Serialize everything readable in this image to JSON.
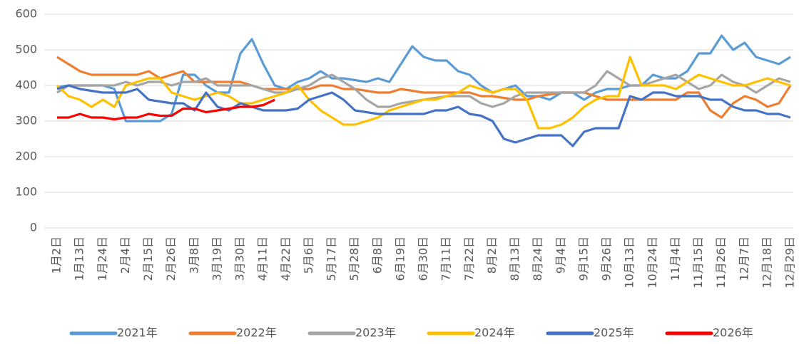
{
  "chart_data": {
    "type": "line",
    "categories": [
      "1月2日",
      null,
      "1月13日",
      null,
      "1月24日",
      null,
      "2月4日",
      null,
      "2月15日",
      null,
      "2月26日",
      null,
      "3月8日",
      null,
      "3月19日",
      null,
      "3月30日",
      null,
      "4月11日",
      null,
      "4月22日",
      null,
      "5月6日",
      null,
      "5月17日",
      null,
      "5月28日",
      null,
      "6月8日",
      null,
      "6月19日",
      null,
      "6月30日",
      null,
      "7月11日",
      null,
      "7月22日",
      null,
      "8月2日",
      null,
      "8月13日",
      null,
      "8月24日",
      null,
      "9月4日",
      null,
      "9月15日",
      null,
      "9月26日",
      null,
      "10月13日",
      null,
      "10月24日",
      null,
      "11月4日",
      null,
      "11月15日",
      null,
      "11月26日",
      null,
      "12月7日",
      null,
      "12月18日",
      null,
      "12月29日"
    ],
    "series": [
      {
        "name": "2021年",
        "color": "#5b9bd5",
        "values": [
          395,
          400,
          400,
          400,
          400,
          390,
          300,
          300,
          300,
          300,
          320,
          430,
          430,
          400,
          380,
          380,
          490,
          530,
          460,
          400,
          390,
          410,
          420,
          440,
          420,
          420,
          415,
          410,
          420,
          410,
          460,
          510,
          480,
          470,
          470,
          440,
          430,
          400,
          380,
          390,
          400,
          370,
          370,
          360,
          380,
          380,
          360,
          380,
          390,
          390,
          400,
          400,
          430,
          420,
          420,
          440,
          490,
          490,
          540,
          500,
          520,
          480,
          470,
          460,
          480
        ]
      },
      {
        "name": "2022年",
        "color": "#ed7d31",
        "values": [
          480,
          460,
          440,
          430,
          430,
          430,
          430,
          430,
          440,
          420,
          430,
          440,
          410,
          410,
          410,
          410,
          410,
          400,
          390,
          390,
          390,
          390,
          390,
          400,
          400,
          390,
          390,
          385,
          380,
          380,
          390,
          385,
          380,
          380,
          380,
          380,
          380,
          370,
          370,
          365,
          360,
          360,
          370,
          375,
          380,
          380,
          380,
          370,
          360,
          360,
          360,
          360,
          360,
          360,
          360,
          380,
          380,
          330,
          310,
          350,
          370,
          360,
          340,
          350,
          400
        ]
      },
      {
        "name": "2023年",
        "color": "#a5a5a5",
        "values": [
          380,
          400,
          400,
          400,
          400,
          400,
          410,
          400,
          410,
          410,
          400,
          410,
          410,
          420,
          400,
          400,
          400,
          400,
          390,
          380,
          380,
          390,
          400,
          420,
          430,
          410,
          390,
          360,
          340,
          340,
          350,
          355,
          360,
          365,
          370,
          370,
          370,
          350,
          340,
          350,
          370,
          380,
          380,
          380,
          380,
          380,
          380,
          400,
          440,
          420,
          400,
          400,
          410,
          420,
          430,
          410,
          390,
          400,
          430,
          410,
          400,
          380,
          400,
          420,
          410
        ]
      },
      {
        "name": "2024年",
        "color": "#ffc000",
        "values": [
          400,
          370,
          360,
          340,
          360,
          340,
          400,
          410,
          420,
          420,
          380,
          370,
          360,
          370,
          380,
          370,
          350,
          350,
          360,
          370,
          380,
          400,
          360,
          330,
          310,
          290,
          290,
          300,
          310,
          330,
          340,
          350,
          360,
          360,
          370,
          380,
          400,
          390,
          380,
          390,
          390,
          360,
          280,
          280,
          290,
          310,
          340,
          360,
          370,
          370,
          480,
          400,
          400,
          400,
          390,
          410,
          430,
          420,
          410,
          400,
          400,
          410,
          420,
          410,
          400
        ]
      },
      {
        "name": "2025年",
        "color": "#4472c4",
        "values": [
          390,
          400,
          390,
          385,
          380,
          380,
          380,
          390,
          360,
          355,
          350,
          350,
          330,
          380,
          340,
          330,
          350,
          340,
          330,
          330,
          330,
          335,
          360,
          370,
          380,
          360,
          330,
          325,
          320,
          320,
          320,
          320,
          320,
          330,
          330,
          340,
          320,
          315,
          300,
          250,
          240,
          250,
          260,
          260,
          260,
          230,
          270,
          280,
          280,
          280,
          370,
          360,
          380,
          380,
          370,
          370,
          370,
          360,
          360,
          340,
          330,
          330,
          320,
          320,
          310
        ]
      },
      {
        "name": "2026年",
        "color": "#ff0000",
        "values": [
          310,
          310,
          320,
          310,
          310,
          305,
          310,
          310,
          320,
          315,
          315,
          335,
          335,
          325,
          330,
          335,
          340,
          340,
          345,
          360,
          null,
          null,
          null,
          null,
          null,
          null,
          null,
          null,
          null,
          null,
          null,
          null,
          null,
          null,
          null,
          null,
          null,
          null,
          null,
          null,
          null,
          null,
          null,
          null,
          null,
          null,
          null,
          null,
          null,
          null,
          null,
          null,
          null,
          null,
          null,
          null,
          null,
          null,
          null,
          null,
          null,
          null,
          null,
          null,
          null
        ]
      }
    ],
    "ylim": [
      0,
      600
    ],
    "yticks": [
      0,
      100,
      200,
      300,
      400,
      500,
      600
    ],
    "grid": true,
    "legend": "bottom"
  }
}
